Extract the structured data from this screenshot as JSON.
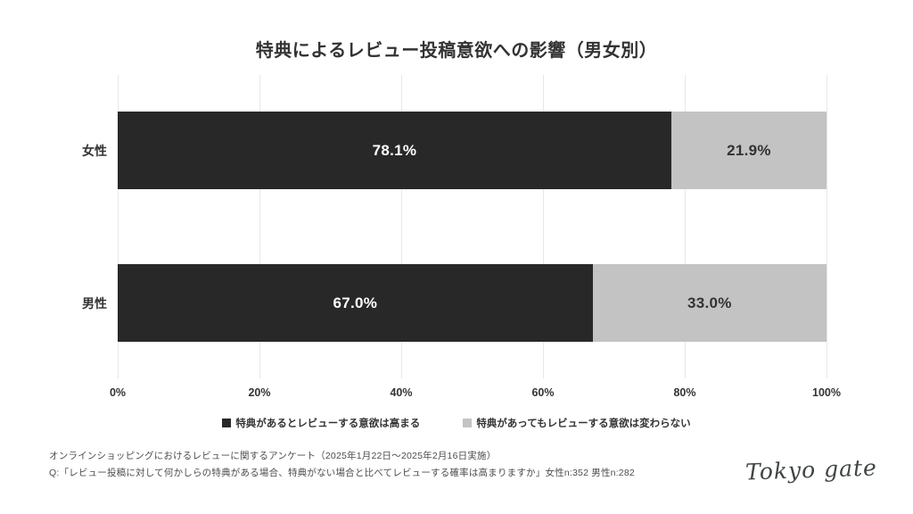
{
  "title": "特典によるレビュー投稿意欲への影響（男女別）",
  "chart_data": {
    "type": "bar",
    "orientation": "horizontal",
    "stacked": true,
    "categories": [
      "女性",
      "男性"
    ],
    "series": [
      {
        "name": "特典があるとレビューする意欲は高まる",
        "color": "#282828",
        "values": [
          78.1,
          67.0
        ],
        "labels": [
          "78.1%",
          "67.0%"
        ]
      },
      {
        "name": "特典があってもレビューする意欲は変わらない",
        "color": "#c3c3c3",
        "values": [
          21.9,
          33.0
        ],
        "labels": [
          "21.9%",
          "33.0%"
        ]
      }
    ],
    "x_ticks": [
      "0%",
      "20%",
      "40%",
      "60%",
      "80%",
      "100%"
    ],
    "xlim": [
      0,
      100
    ],
    "grid": "vertical",
    "legend_position": "bottom"
  },
  "legend": {
    "items": [
      {
        "label": "特典があるとレビューする意欲は高まる",
        "color": "#282828"
      },
      {
        "label": "特典があってもレビューする意欲は変わらない",
        "color": "#c3c3c3"
      }
    ]
  },
  "footer": {
    "line1": "オンラインショッピングにおけるレビューに関するアンケート（2025年1月22日〜2025年2月16日実施）",
    "line2": "Q:「レビュー投稿に対して何かしらの特典がある場合、特典がない場合と比べてレビューする確率は高まりますか」女性n:352 男性n:282",
    "logo": "Tokyo gate"
  },
  "colors": {
    "series_dark": "#282828",
    "series_light": "#c3c3c3",
    "gridline": "#e7e7e7",
    "text": "#333333"
  }
}
